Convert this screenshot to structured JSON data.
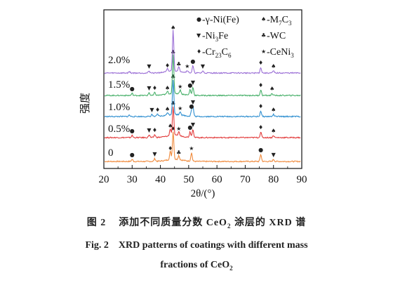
{
  "chart_data": {
    "type": "line",
    "xlabel": "2θ/(°)",
    "ylabel": "强度",
    "xlim": [
      20,
      90
    ],
    "xticks": [
      20,
      30,
      40,
      50,
      60,
      70,
      80,
      90
    ],
    "grid": false,
    "legend_position": "top-right",
    "legend": [
      {
        "symbol": "●",
        "label": "-γ-Ni(Fe)"
      },
      {
        "symbol": "▼",
        "label": "-Ni3Fe"
      },
      {
        "symbol": "♦",
        "label": "-Cr23C6"
      },
      {
        "symbol": "♠",
        "label": "-M7C3"
      },
      {
        "symbol": "♣",
        "label": "-WC"
      },
      {
        "symbol": "★",
        "label": "-CeNi3"
      }
    ],
    "series": [
      {
        "name": "0",
        "color": "#f08a3c",
        "peaks": [
          [
            30,
            3
          ],
          [
            38,
            4
          ],
          [
            43.5,
            12
          ],
          [
            44.5,
            40
          ],
          [
            46.5,
            6
          ],
          [
            51,
            12
          ],
          [
            75.5,
            10
          ],
          [
            80,
            3
          ]
        ]
      },
      {
        "name": "0.5%",
        "color": "#e23b3b",
        "peaks": [
          [
            30,
            3
          ],
          [
            36,
            4
          ],
          [
            38,
            4
          ],
          [
            43.5,
            10
          ],
          [
            44.5,
            42
          ],
          [
            46.5,
            6
          ],
          [
            50.5,
            8
          ],
          [
            51.5,
            12
          ],
          [
            75.5,
            8
          ],
          [
            80,
            3
          ]
        ]
      },
      {
        "name": "1.0%",
        "color": "#2f8fd0",
        "peaks": [
          [
            29,
            2
          ],
          [
            37,
            3
          ],
          [
            39,
            3
          ],
          [
            42.5,
            4
          ],
          [
            44.5,
            50
          ],
          [
            47,
            5
          ],
          [
            51,
            8
          ],
          [
            51.5,
            14
          ],
          [
            75.5,
            8
          ],
          [
            80,
            3
          ]
        ]
      },
      {
        "name": "1.5%",
        "color": "#48b06a",
        "peaks": [
          [
            30,
            3
          ],
          [
            36,
            4
          ],
          [
            38,
            4
          ],
          [
            42.5,
            4
          ],
          [
            44.5,
            55
          ],
          [
            47,
            6
          ],
          [
            50.5,
            8
          ],
          [
            51.5,
            12
          ],
          [
            75.5,
            8
          ],
          [
            79.5,
            3
          ]
        ]
      },
      {
        "name": "2.0%",
        "color": "#9b6fd6",
        "peaks": [
          [
            29,
            2
          ],
          [
            36,
            3
          ],
          [
            42.5,
            4
          ],
          [
            44.5,
            58
          ],
          [
            46.5,
            6
          ],
          [
            49.5,
            3
          ],
          [
            51.5,
            10
          ],
          [
            55,
            3
          ],
          [
            75.5,
            8
          ],
          [
            80,
            3
          ]
        ]
      }
    ]
  },
  "legend_sub": {
    "ni3fe": "3",
    "cr23c6": "23",
    "cr23c6_b": "6",
    "m7c3": "7",
    "m7c3_b": "3",
    "ceni3": "3"
  },
  "captions": {
    "cn_prefix": "图 2",
    "cn_text": "添加不同质量分数 CeO",
    "cn_sub": "2",
    "cn_suffix": " 涂层的 XRD 谱",
    "en_line1": "Fig. 2    XRD patterns of coatings with different mass",
    "en_line2_a": "fractions of CeO",
    "en_line2_sub": "2"
  }
}
